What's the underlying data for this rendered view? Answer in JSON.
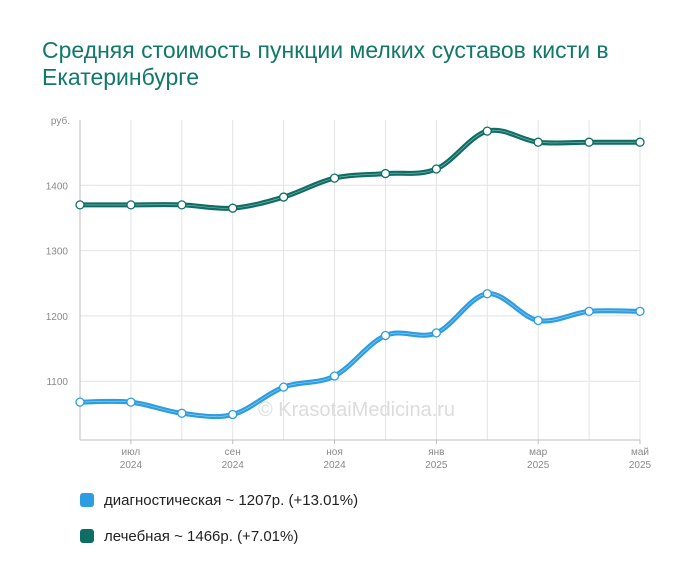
{
  "title": "Средняя стоимость пункции мелких суставов кисти в Екатеринбурге",
  "watermark": "© KrasotaiMedicina.ru",
  "chart_data": {
    "type": "line",
    "y_unit_label": "руб.",
    "y_ticks": [
      1100,
      1200,
      1300,
      1400
    ],
    "ylim": [
      1010,
      1500
    ],
    "grid": true,
    "x_ticks": [
      {
        "index": 1,
        "month": "июл",
        "year": "2024"
      },
      {
        "index": 3,
        "month": "сен",
        "year": "2024"
      },
      {
        "index": 5,
        "month": "ноя",
        "year": "2024"
      },
      {
        "index": 7,
        "month": "янв",
        "year": "2025"
      },
      {
        "index": 9,
        "month": "мар",
        "year": "2025"
      },
      {
        "index": 11,
        "month": "май",
        "year": "2025"
      }
    ],
    "x_points": [
      "2024-06",
      "2024-07",
      "2024-08",
      "2024-09",
      "2024-10",
      "2024-11",
      "2024-12",
      "2025-01",
      "2025-02",
      "2025-03",
      "2025-04",
      "2025-05"
    ],
    "series": [
      {
        "name": "диагностическая",
        "color": "#2b9de0",
        "values": [
          1068,
          1068,
          1051,
          1049,
          1091,
          1108,
          1170,
          1174,
          1234,
          1193,
          1207,
          1207
        ]
      },
      {
        "name": "лечебная",
        "color": "#0e6e65",
        "values": [
          1370,
          1370,
          1370,
          1365,
          1382,
          1411,
          1418,
          1425,
          1483,
          1466,
          1466,
          1466
        ]
      }
    ],
    "legend": [
      {
        "text": "диагностическая ~ 1207р. (+13.01%)",
        "color": "#2b9de0"
      },
      {
        "text": "лечебная ~ 1466р. (+7.01%)",
        "color": "#0e6e65"
      }
    ],
    "legend_position": "bottom-left"
  }
}
